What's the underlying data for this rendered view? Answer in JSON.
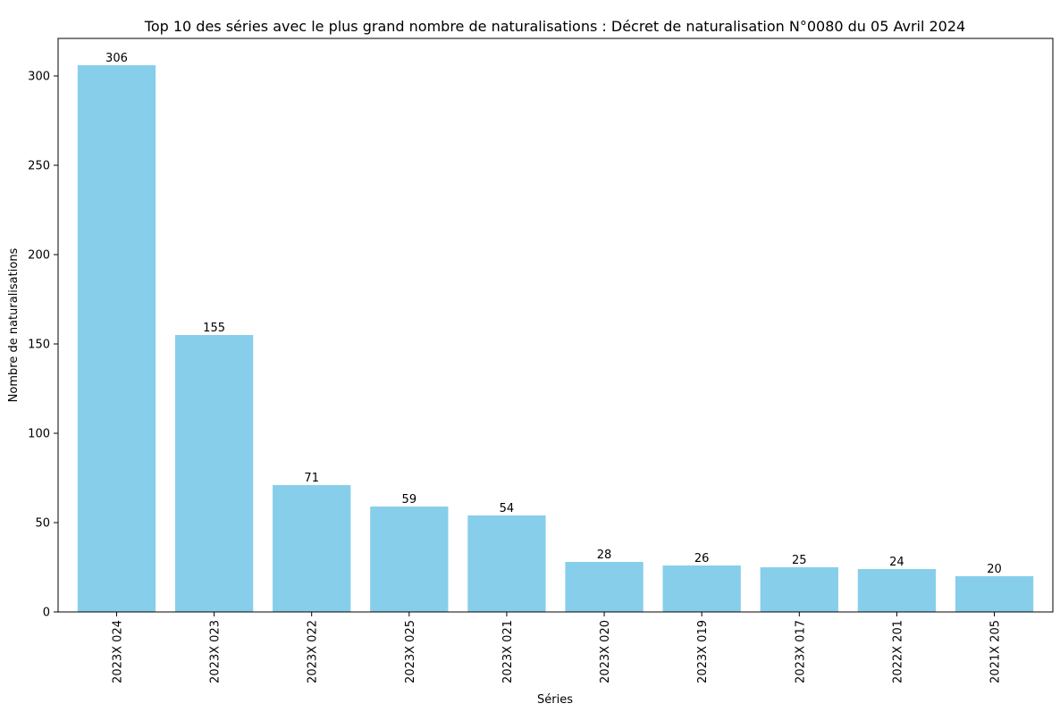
{
  "chart_data": {
    "type": "bar",
    "title": "Top 10 des séries avec le plus grand nombre de naturalisations : Décret de naturalisation N°0080 du 05 Avril 2024",
    "xlabel": "Séries",
    "ylabel": "Nombre de naturalisations",
    "categories": [
      "2023X 024",
      "2023X 023",
      "2023X 022",
      "2023X 025",
      "2023X 021",
      "2023X 020",
      "2023X 019",
      "2023X 017",
      "2022X 201",
      "2021X 205"
    ],
    "values": [
      306,
      155,
      71,
      59,
      54,
      28,
      26,
      25,
      24,
      20
    ],
    "ylim": [
      0,
      321
    ],
    "yticks": [
      0,
      50,
      100,
      150,
      200,
      250,
      300
    ],
    "bar_color": "#87ceeb",
    "grid": false,
    "legend": false,
    "x_tick_rotation": "vertical"
  }
}
